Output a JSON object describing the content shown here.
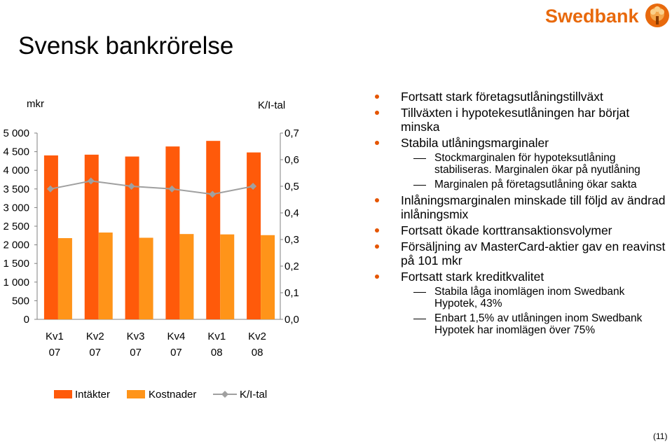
{
  "slide": {
    "title": "Svensk bankrörelse",
    "logo_text": "Swedbank",
    "page_number": "(11)"
  },
  "colors": {
    "intakter": "#ff5a0a",
    "kostnader": "#ff9419",
    "ki_line": "#a0a0a0",
    "brand": "#e8690c",
    "bullet": "#e55500"
  },
  "chart_data": {
    "type": "bar",
    "ylabel_left": "mkr",
    "ylabel_right": "K/I-tal",
    "categories": [
      [
        "Kv1",
        "07"
      ],
      [
        "Kv2",
        "07"
      ],
      [
        "Kv3",
        "07"
      ],
      [
        "Kv4",
        "07"
      ],
      [
        "Kv1",
        "08"
      ],
      [
        "Kv2",
        "08"
      ]
    ],
    "ylim_left": [
      0,
      5000
    ],
    "yticks_left": [
      "0",
      "500",
      "1 000",
      "1 500",
      "2 000",
      "2 500",
      "3 000",
      "3 500",
      "4 000",
      "4 500",
      "5 000"
    ],
    "ylim_right": [
      0,
      0.7
    ],
    "yticks_right": [
      "0,0",
      "0,1",
      "0,2",
      "0,3",
      "0,4",
      "0,5",
      "0,6",
      "0,7"
    ],
    "grid": false,
    "legend_position": "bottom",
    "series": [
      {
        "name": "Intäkter",
        "type": "bar",
        "axis": "left",
        "values": [
          4400,
          4420,
          4370,
          4640,
          4790,
          4480
        ]
      },
      {
        "name": "Kostnader",
        "type": "bar",
        "axis": "left",
        "values": [
          2180,
          2330,
          2190,
          2290,
          2280,
          2260
        ]
      },
      {
        "name": "K/I-tal",
        "type": "line",
        "axis": "right",
        "values": [
          0.49,
          0.52,
          0.5,
          0.49,
          0.47,
          0.5
        ]
      }
    ]
  },
  "bullets": [
    {
      "text": "Fortsatt stark företagsutlåningstillväxt",
      "sub": []
    },
    {
      "text": "Tillväxten i hypotekesutlåningen har börjat minska",
      "sub": []
    },
    {
      "text": "Stabila utlåningsmarginaler",
      "sub": [
        "Stockmarginalen för hypoteksutlåning stabiliseras. Marginalen ökar på nyutlåning",
        "Marginalen på företagsutlåning ökar sakta"
      ]
    },
    {
      "text": "Inlåningsmarginalen minskade till följd av ändrad inlåningsmix",
      "sub": []
    },
    {
      "text": "Fortsatt ökade korttransaktionsvolymer",
      "sub": []
    },
    {
      "text": "Försäljning av MasterCard-aktier gav en reavinst på 101 mkr",
      "sub": []
    },
    {
      "text": "Fortsatt stark kreditkvalitet",
      "sub": [
        "Stabila låga inomlägen inom Swedbank Hypotek, 43%",
        "Enbart 1,5% av utlåningen inom Swedbank Hypotek har inomlägen över 75%"
      ]
    }
  ]
}
